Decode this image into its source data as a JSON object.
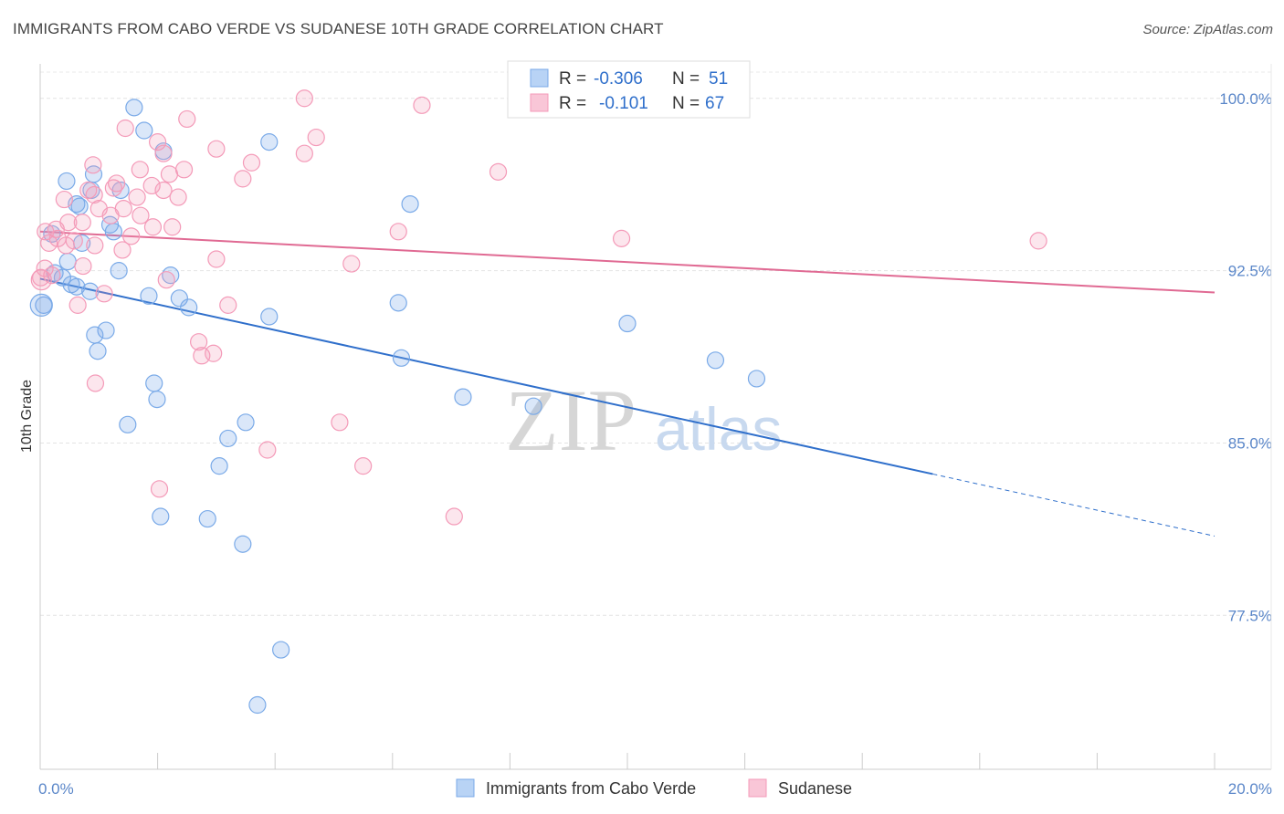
{
  "title": "IMMIGRANTS FROM CABO VERDE VS SUDANESE 10TH GRADE CORRELATION CHART",
  "source": "Source: ZipAtlas.com",
  "watermark": {
    "zip": "ZIP",
    "atlas": "atlas"
  },
  "chart_data": {
    "type": "scatter",
    "title": "IMMIGRANTS FROM CABO VERDE VS SUDANESE 10TH GRADE CORRELATION CHART",
    "xlabel": "",
    "ylabel": "10th Grade",
    "xlim": [
      0.0,
      20.0
    ],
    "ylim": [
      70.8,
      101.5
    ],
    "x_ticks": [
      "0.0%",
      "20.0%"
    ],
    "y_ticks": [
      {
        "value": 100.0,
        "label": "100.0%"
      },
      {
        "value": 92.5,
        "label": "92.5%"
      },
      {
        "value": 85.0,
        "label": "85.0%"
      },
      {
        "value": 77.5,
        "label": "77.5%"
      }
    ],
    "grid": true,
    "legend_position": "top-center",
    "series": [
      {
        "name": "Immigrants from Cabo Verde",
        "color": "#7aaae8",
        "line_color": "#2f6fcb",
        "R": "-0.306",
        "N": "51",
        "trend": {
          "x0": 0.0,
          "y0": 92.15,
          "x1": 15.2,
          "y1": 83.65,
          "dash_x1": 20.0,
          "dash_y1": 80.95
        },
        "points": [
          [
            1.6,
            99.6
          ],
          [
            1.77,
            98.6
          ],
          [
            2.1,
            97.7
          ],
          [
            3.9,
            98.1
          ],
          [
            0.91,
            96.7
          ],
          [
            0.45,
            96.4
          ],
          [
            0.87,
            96.0
          ],
          [
            1.37,
            96.0
          ],
          [
            0.62,
            95.4
          ],
          [
            0.67,
            95.3
          ],
          [
            6.3,
            95.4
          ],
          [
            1.19,
            94.5
          ],
          [
            1.25,
            94.2
          ],
          [
            0.2,
            94.1
          ],
          [
            0.71,
            93.7
          ],
          [
            0.47,
            92.9
          ],
          [
            0.25,
            92.4
          ],
          [
            0.38,
            92.2
          ],
          [
            0.53,
            91.9
          ],
          [
            0.62,
            91.8
          ],
          [
            1.34,
            92.5
          ],
          [
            2.22,
            92.3
          ],
          [
            0.85,
            91.6
          ],
          [
            1.85,
            91.4
          ],
          [
            2.37,
            91.3
          ],
          [
            2.53,
            90.9
          ],
          [
            0.06,
            91.0
          ],
          [
            3.9,
            90.5
          ],
          [
            6.1,
            91.1
          ],
          [
            1.12,
            89.9
          ],
          [
            0.93,
            89.7
          ],
          [
            0.98,
            89.0
          ],
          [
            10.0,
            90.2
          ],
          [
            6.15,
            88.7
          ],
          [
            11.5,
            88.6
          ],
          [
            1.94,
            87.6
          ],
          [
            12.2,
            87.8
          ],
          [
            1.99,
            86.9
          ],
          [
            7.2,
            87.0
          ],
          [
            8.4,
            86.6
          ],
          [
            3.5,
            85.9
          ],
          [
            1.49,
            85.8
          ],
          [
            3.2,
            85.2
          ],
          [
            3.05,
            84.0
          ],
          [
            2.05,
            81.8
          ],
          [
            2.85,
            81.7
          ],
          [
            3.45,
            80.6
          ],
          [
            4.1,
            76.0
          ],
          [
            3.7,
            73.6
          ]
        ]
      },
      {
        "name": "Sudanese",
        "color": "#f49ab8",
        "line_color": "#e06a93",
        "R": "-0.101",
        "N": "67",
        "trend": {
          "x0": 0.0,
          "y0": 94.2,
          "x1": 20.0,
          "y1": 91.55
        },
        "points": [
          [
            4.5,
            100.0
          ],
          [
            6.5,
            99.7
          ],
          [
            2.5,
            99.1
          ],
          [
            1.45,
            98.7
          ],
          [
            4.7,
            98.3
          ],
          [
            2.0,
            98.1
          ],
          [
            3.0,
            97.8
          ],
          [
            2.1,
            97.6
          ],
          [
            4.5,
            97.6
          ],
          [
            3.6,
            97.2
          ],
          [
            0.9,
            97.1
          ],
          [
            1.7,
            96.9
          ],
          [
            2.45,
            96.9
          ],
          [
            2.2,
            96.7
          ],
          [
            7.8,
            96.8
          ],
          [
            3.45,
            96.5
          ],
          [
            1.3,
            96.3
          ],
          [
            1.25,
            96.1
          ],
          [
            1.9,
            96.2
          ],
          [
            2.1,
            96.0
          ],
          [
            0.82,
            96.0
          ],
          [
            0.92,
            95.8
          ],
          [
            1.65,
            95.7
          ],
          [
            2.35,
            95.7
          ],
          [
            0.41,
            95.6
          ],
          [
            1.0,
            95.2
          ],
          [
            1.42,
            95.2
          ],
          [
            1.71,
            94.9
          ],
          [
            1.2,
            94.9
          ],
          [
            0.48,
            94.6
          ],
          [
            0.72,
            94.6
          ],
          [
            2.25,
            94.4
          ],
          [
            1.92,
            94.4
          ],
          [
            0.27,
            94.3
          ],
          [
            6.1,
            94.2
          ],
          [
            0.09,
            94.2
          ],
          [
            1.55,
            94.0
          ],
          [
            0.3,
            93.9
          ],
          [
            9.9,
            93.9
          ],
          [
            0.58,
            93.8
          ],
          [
            0.15,
            93.7
          ],
          [
            0.44,
            93.6
          ],
          [
            0.93,
            93.6
          ],
          [
            1.4,
            93.4
          ],
          [
            17.0,
            93.8
          ],
          [
            3.0,
            93.0
          ],
          [
            5.3,
            92.8
          ],
          [
            0.73,
            92.7
          ],
          [
            0.08,
            92.6
          ],
          [
            0.01,
            92.2
          ],
          [
            2.15,
            92.1
          ],
          [
            0.2,
            92.3
          ],
          [
            1.09,
            91.5
          ],
          [
            0.64,
            91.0
          ],
          [
            3.2,
            91.0
          ],
          [
            2.7,
            89.4
          ],
          [
            2.95,
            88.9
          ],
          [
            2.75,
            88.8
          ],
          [
            0.94,
            87.6
          ],
          [
            5.1,
            85.9
          ],
          [
            3.87,
            84.7
          ],
          [
            5.5,
            84.0
          ],
          [
            2.03,
            83.0
          ],
          [
            7.05,
            81.8
          ]
        ]
      }
    ]
  }
}
